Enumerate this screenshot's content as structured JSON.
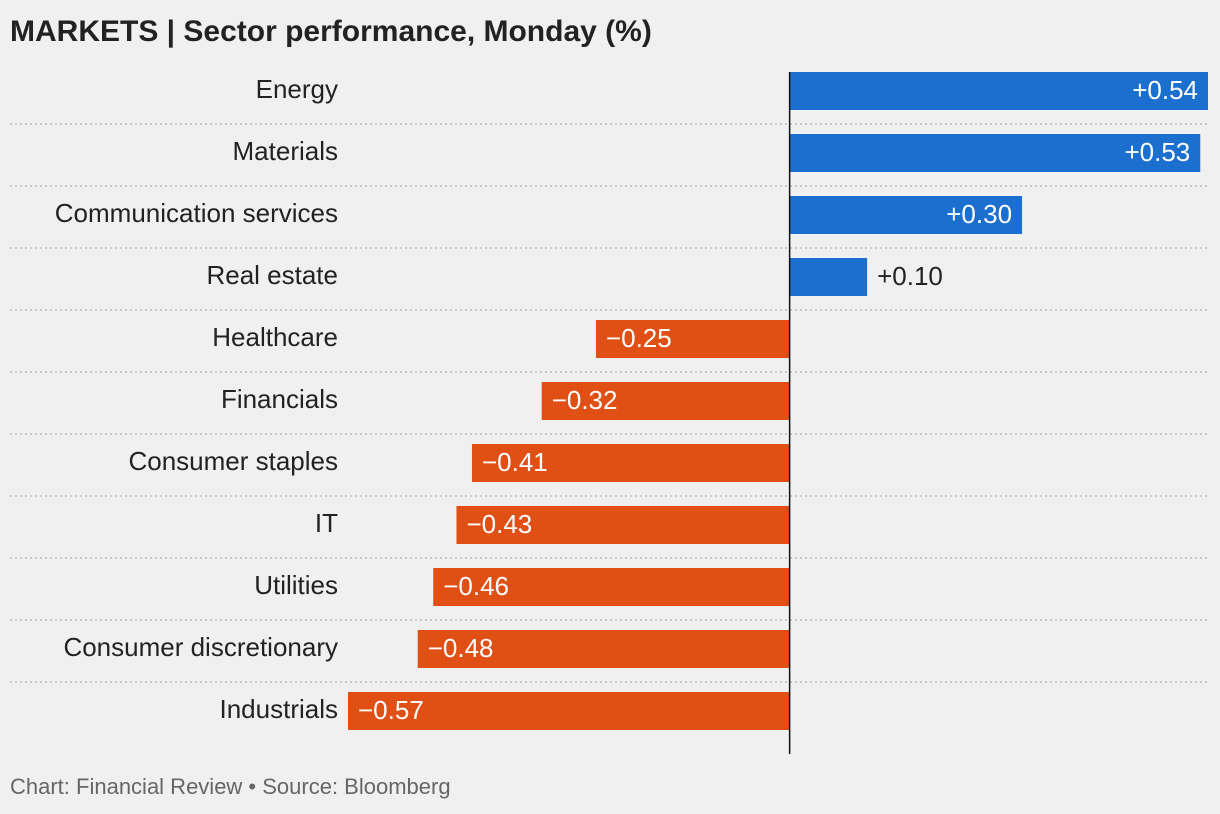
{
  "chart_data": {
    "type": "hbar",
    "title": "MARKETS | Sector performance, Monday (%)",
    "categories": [
      "Energy",
      "Materials",
      "Communication services",
      "Real estate",
      "Healthcare",
      "Financials",
      "Consumer staples",
      "IT",
      "Utilities",
      "Consumer discretionary",
      "Industrials"
    ],
    "values": [
      0.54,
      0.53,
      0.3,
      0.1,
      -0.25,
      -0.32,
      -0.41,
      -0.43,
      -0.46,
      -0.48,
      -0.57
    ],
    "value_labels": [
      "+0.54",
      "+0.53",
      "+0.30",
      "+0.10",
      "−0.25",
      "−0.32",
      "−0.41",
      "−0.43",
      "−0.46",
      "−0.48",
      "−0.57"
    ],
    "positive_color": "#1a6fcf",
    "negative_color": "#e04f14",
    "xlim": [
      -0.57,
      0.54
    ],
    "source": "Chart: Financial Review • Source: Bloomberg"
  }
}
